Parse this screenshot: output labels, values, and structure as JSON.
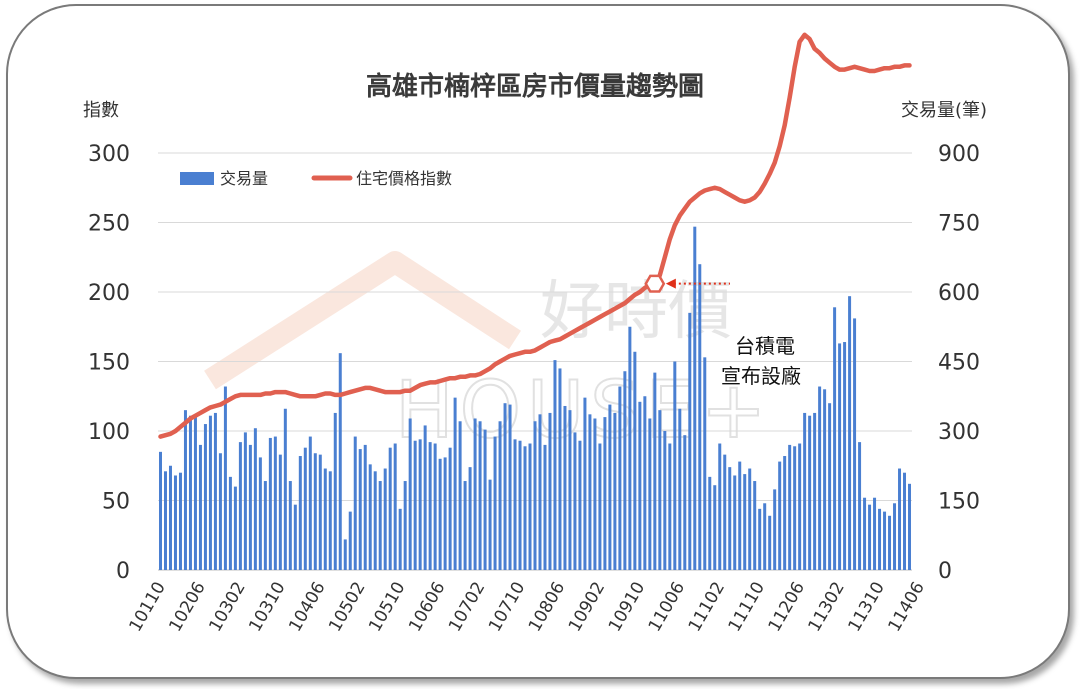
{
  "chart_data": {
    "type": "bar+line",
    "title": "高雄市楠梓區房市價量趨勢圖",
    "left_axis_label": "指數",
    "right_axis_label": "交易量(筆)",
    "left_ylim": [
      0,
      300
    ],
    "left_ticks": [
      0,
      50,
      100,
      150,
      200,
      250,
      300
    ],
    "right_ylim": [
      0,
      900
    ],
    "right_ticks": [
      0,
      150,
      300,
      450,
      600,
      750,
      900
    ],
    "x_tick_labels": [
      "10110",
      "10206",
      "10302",
      "10310",
      "10406",
      "10502",
      "10510",
      "10606",
      "10702",
      "10710",
      "10806",
      "10902",
      "10910",
      "11006",
      "11102",
      "11110",
      "11206",
      "11302",
      "11310",
      "11406"
    ],
    "legend": {
      "bar": "交易量",
      "line": "住宅價格指數",
      "placement": "top-left"
    },
    "grid": true,
    "annotation": {
      "text_line1": "台積電",
      "text_line2": "宣布設廠",
      "at_index": 99
    },
    "watermark": {
      "text1": "好時價",
      "text2": "HOUSE+"
    },
    "colors": {
      "bar": "#4a7fd1",
      "line": "#e06050",
      "marker": "#e06050"
    },
    "series": [
      {
        "name": "交易量",
        "axis": "right",
        "values": [
          255,
          213,
          225,
          204,
          210,
          345,
          333,
          330,
          270,
          315,
          333,
          339,
          252,
          396,
          201,
          180,
          276,
          297,
          270,
          306,
          243,
          192,
          285,
          288,
          249,
          348,
          192,
          141,
          246,
          264,
          288,
          252,
          249,
          219,
          213,
          339,
          468,
          66,
          126,
          288,
          261,
          270,
          228,
          213,
          192,
          219,
          264,
          273,
          132,
          192,
          327,
          279,
          282,
          312,
          276,
          273,
          240,
          243,
          264,
          372,
          321,
          192,
          222,
          327,
          321,
          303,
          195,
          288,
          321,
          360,
          357,
          282,
          279,
          267,
          273,
          321,
          336,
          270,
          339,
          453,
          435,
          354,
          345,
          297,
          279,
          372,
          336,
          327,
          273,
          330,
          357,
          339,
          396,
          429,
          525,
          471,
          363,
          375,
          327,
          426,
          345,
          300,
          273,
          450,
          348,
          291,
          555,
          741,
          660,
          459,
          201,
          183,
          273,
          249,
          222,
          204,
          234,
          207,
          219,
          192,
          132,
          144,
          117,
          174,
          234,
          246,
          270,
          267,
          273,
          339,
          333,
          339,
          396,
          390,
          360,
          567,
          489,
          492,
          591,
          543,
          276,
          156,
          141,
          156,
          132,
          126,
          117,
          144,
          219,
          210,
          186
        ]
      },
      {
        "name": "住宅價格指數",
        "axis": "left",
        "values": [
          96,
          97,
          98,
          100,
          103,
          106,
          109,
          111,
          113,
          115,
          117,
          118,
          119,
          121,
          123,
          125,
          126,
          126,
          126,
          126,
          126,
          127,
          127,
          128,
          128,
          128,
          127,
          126,
          125,
          125,
          125,
          125,
          126,
          127,
          127,
          126,
          126,
          127,
          128,
          129,
          130,
          131,
          131,
          130,
          129,
          128,
          128,
          128,
          128,
          129,
          129,
          131,
          133,
          134,
          135,
          135,
          136,
          137,
          138,
          138,
          139,
          139,
          140,
          140,
          141,
          143,
          145,
          148,
          150,
          152,
          154,
          155,
          156,
          157,
          157,
          158,
          160,
          162,
          164,
          165,
          166,
          168,
          170,
          172,
          174,
          176,
          178,
          180,
          182,
          184,
          186,
          188,
          190,
          192,
          195,
          198,
          200,
          203,
          205,
          206,
          212,
          225,
          238,
          248,
          255,
          260,
          265,
          268,
          271,
          273,
          274,
          275,
          274,
          272,
          270,
          268,
          266,
          265,
          266,
          268,
          272,
          278,
          285,
          293,
          305,
          320,
          340,
          362,
          380,
          385,
          382,
          375,
          372,
          368,
          365,
          362,
          360,
          360,
          361,
          362,
          361,
          360,
          359,
          359,
          360,
          361,
          361,
          362,
          362,
          363,
          363
        ]
      }
    ]
  }
}
